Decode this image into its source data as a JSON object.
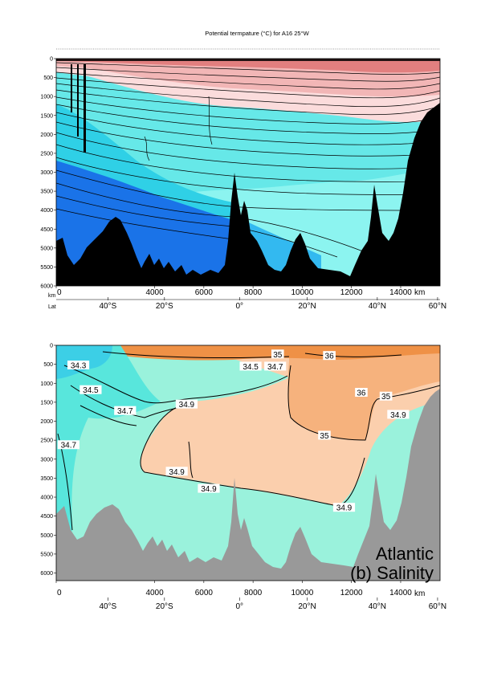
{
  "chart_data": [
    {
      "type": "heatmap",
      "title": "Potential termpature (°C) for A16 25°W",
      "x_unit": "km",
      "x_ticks": [
        0,
        4000,
        6000,
        8000,
        10000,
        12000,
        14000
      ],
      "x_tick_labels": [
        "0",
        "4000",
        "6000",
        "8000",
        "10000",
        "12000",
        "14000"
      ],
      "xlim": [
        0,
        15600
      ],
      "depth_ticks": [
        0,
        500,
        1000,
        1500,
        2000,
        2500,
        3000,
        3500,
        4000,
        4500,
        5000,
        5500,
        6000
      ],
      "depth_tick_labels": [
        "0",
        "500",
        "1000",
        "1500",
        "2000",
        "2500",
        "3000",
        "3500",
        "4000",
        "4500",
        "5000",
        "5500",
        "6000"
      ],
      "ylim": [
        0,
        6000
      ],
      "y_unit_label": "km",
      "lat_row_label": "Lat",
      "lat_ticks": [
        {
          "label": "40°S",
          "x": 2100
        },
        {
          "label": "20°S",
          "x": 4400
        },
        {
          "label": "0°",
          "x": 7450
        },
        {
          "label": "20°N",
          "x": 10200
        },
        {
          "label": "40°N",
          "x": 13050
        },
        {
          "label": "60°N",
          "x": 15500
        }
      ],
      "colors": {
        "warm": "#e27f7f",
        "warm_mid": "#f2b6b6",
        "warm_light": "#fbdcdc",
        "cold": "#66e8e8",
        "colder": "#2fd0e6",
        "coldest": "#1a73e8",
        "bottom_water": "#33b9f0",
        "deep": "#8cf4f0",
        "seafloor": "#000000"
      }
    },
    {
      "type": "heatmap",
      "title": "",
      "x_unit": "km",
      "x_ticks": [
        0,
        4000,
        6000,
        8000,
        10000,
        12000,
        14000
      ],
      "x_tick_labels": [
        "0",
        "4000",
        "6000",
        "8000",
        "10000",
        "12000",
        "14000"
      ],
      "xlim": [
        0,
        15600
      ],
      "depth_ticks": [
        0,
        500,
        1000,
        1500,
        2000,
        2500,
        3000,
        3500,
        4000,
        4500,
        5000,
        5500,
        6000
      ],
      "depth_tick_labels": [
        "0",
        "500",
        "1000",
        "1500",
        "2000",
        "2500",
        "3000",
        "3500",
        "4000",
        "4500",
        "5000",
        "5500",
        "6000"
      ],
      "ylim": [
        0,
        6200
      ],
      "lat_ticks": [
        {
          "label": "40°S",
          "x": 2100
        },
        {
          "label": "20°S",
          "x": 4400
        },
        {
          "label": "0°",
          "x": 7450
        },
        {
          "label": "20°N",
          "x": 10200
        },
        {
          "label": "40°N",
          "x": 13050
        },
        {
          "label": "60°N",
          "x": 15500
        }
      ],
      "contour_labels": [
        {
          "text": "34.3",
          "x": 900,
          "depth": 550
        },
        {
          "text": "34.5",
          "x": 1400,
          "depth": 1200
        },
        {
          "text": "34.7",
          "x": 2800,
          "depth": 1750
        },
        {
          "text": "34.7",
          "x": 500,
          "depth": 2650
        },
        {
          "text": "34.9",
          "x": 5300,
          "depth": 1580
        },
        {
          "text": "34.5",
          "x": 7900,
          "depth": 580
        },
        {
          "text": "34.7",
          "x": 8900,
          "depth": 580
        },
        {
          "text": "35",
          "x": 9000,
          "depth": 260
        },
        {
          "text": "36",
          "x": 11100,
          "depth": 300
        },
        {
          "text": "36",
          "x": 12400,
          "depth": 1270
        },
        {
          "text": "35",
          "x": 13400,
          "depth": 1370
        },
        {
          "text": "34.9",
          "x": 13900,
          "depth": 1850
        },
        {
          "text": "35",
          "x": 10900,
          "depth": 2400
        },
        {
          "text": "34.9",
          "x": 4900,
          "depth": 3350
        },
        {
          "text": "34.9",
          "x": 6200,
          "depth": 3800
        },
        {
          "text": "34.9",
          "x": 11700,
          "depth": 4300
        }
      ],
      "annotation_lines": [
        "Atlantic",
        "(b) Salinity"
      ],
      "colors": {
        "fresh_surface": "#3ccfe6",
        "low": "#58e6dc",
        "mid": "#9af2dc",
        "high": "#fbcfad",
        "higher": "#f6b27d",
        "highest": "#ef9146",
        "seafloor": "#999999"
      }
    }
  ]
}
